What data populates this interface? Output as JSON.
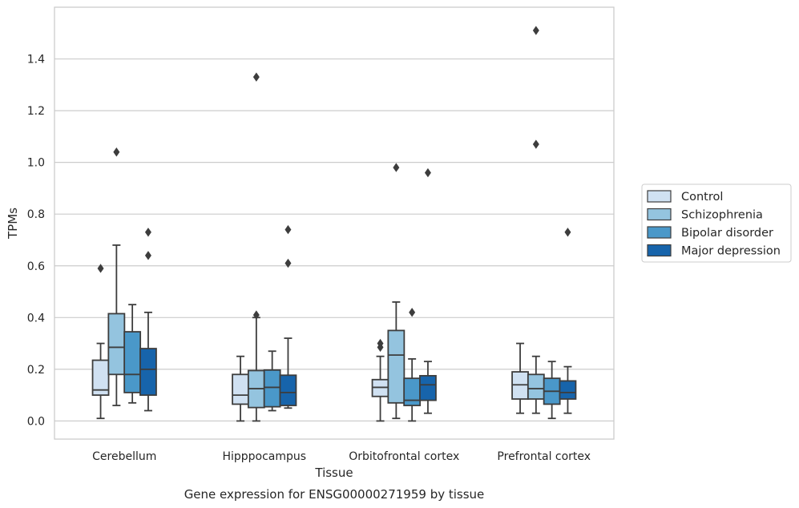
{
  "chart_data": {
    "type": "box",
    "caption": "Gene expression for ENSG00000271959 by tissue",
    "xlabel": "Tissue",
    "ylabel": "TPMs",
    "ylim": [
      -0.07,
      1.6
    ],
    "yticks": [
      0.0,
      0.2,
      0.4,
      0.6,
      0.8,
      1.0,
      1.2,
      1.4
    ],
    "ytick_labels": [
      "0.0",
      "0.2",
      "0.4",
      "0.6",
      "0.8",
      "1.0",
      "1.2",
      "1.4"
    ],
    "grid": "horizontal",
    "legend_position": "right",
    "categories": [
      "Cerebellum",
      "Hipppocampus",
      "Orbitofrontal cortex",
      "Prefrontal cortex"
    ],
    "series": [
      {
        "name": "Control",
        "color": "#d0e1f2",
        "boxes": [
          {
            "whisker_low": 0.01,
            "q1": 0.1,
            "median": 0.12,
            "q3": 0.235,
            "whisker_high": 0.3,
            "outliers": [
              0.59
            ]
          },
          {
            "whisker_low": 0.0,
            "q1": 0.065,
            "median": 0.1,
            "q3": 0.18,
            "whisker_high": 0.25,
            "outliers": []
          },
          {
            "whisker_low": 0.0,
            "q1": 0.095,
            "median": 0.13,
            "q3": 0.16,
            "whisker_high": 0.25,
            "outliers": [
              0.285,
              0.3
            ]
          },
          {
            "whisker_low": 0.03,
            "q1": 0.085,
            "median": 0.14,
            "q3": 0.19,
            "whisker_high": 0.3,
            "outliers": []
          }
        ]
      },
      {
        "name": "Schizophrenia",
        "color": "#94c4df",
        "boxes": [
          {
            "whisker_low": 0.06,
            "q1": 0.18,
            "median": 0.285,
            "q3": 0.415,
            "whisker_high": 0.68,
            "outliers": [
              1.04
            ]
          },
          {
            "whisker_low": 0.0,
            "q1": 0.052,
            "median": 0.125,
            "q3": 0.195,
            "whisker_high": 0.4,
            "outliers": [
              0.41,
              1.33
            ]
          },
          {
            "whisker_low": 0.01,
            "q1": 0.07,
            "median": 0.255,
            "q3": 0.35,
            "whisker_high": 0.46,
            "outliers": [
              0.98
            ]
          },
          {
            "whisker_low": 0.03,
            "q1": 0.085,
            "median": 0.125,
            "q3": 0.18,
            "whisker_high": 0.25,
            "outliers": [
              1.07,
              1.51
            ]
          }
        ]
      },
      {
        "name": "Bipolar disorder",
        "color": "#4a98c9",
        "boxes": [
          {
            "whisker_low": 0.07,
            "q1": 0.11,
            "median": 0.18,
            "q3": 0.345,
            "whisker_high": 0.45,
            "outliers": []
          },
          {
            "whisker_low": 0.04,
            "q1": 0.055,
            "median": 0.13,
            "q3": 0.197,
            "whisker_high": 0.27,
            "outliers": []
          },
          {
            "whisker_low": 0.0,
            "q1": 0.06,
            "median": 0.08,
            "q3": 0.165,
            "whisker_high": 0.24,
            "outliers": [
              0.42
            ]
          },
          {
            "whisker_low": 0.01,
            "q1": 0.065,
            "median": 0.115,
            "q3": 0.165,
            "whisker_high": 0.23,
            "outliers": []
          }
        ]
      },
      {
        "name": "Major depression",
        "color": "#1764ab",
        "boxes": [
          {
            "whisker_low": 0.04,
            "q1": 0.1,
            "median": 0.2,
            "q3": 0.28,
            "whisker_high": 0.42,
            "outliers": [
              0.64,
              0.73
            ]
          },
          {
            "whisker_low": 0.05,
            "q1": 0.06,
            "median": 0.11,
            "q3": 0.177,
            "whisker_high": 0.32,
            "outliers": [
              0.61,
              0.74
            ]
          },
          {
            "whisker_low": 0.03,
            "q1": 0.08,
            "median": 0.14,
            "q3": 0.175,
            "whisker_high": 0.23,
            "outliers": [
              0.96
            ]
          },
          {
            "whisker_low": 0.03,
            "q1": 0.085,
            "median": 0.11,
            "q3": 0.155,
            "whisker_high": 0.21,
            "outliers": [
              0.73
            ]
          }
        ]
      }
    ]
  }
}
